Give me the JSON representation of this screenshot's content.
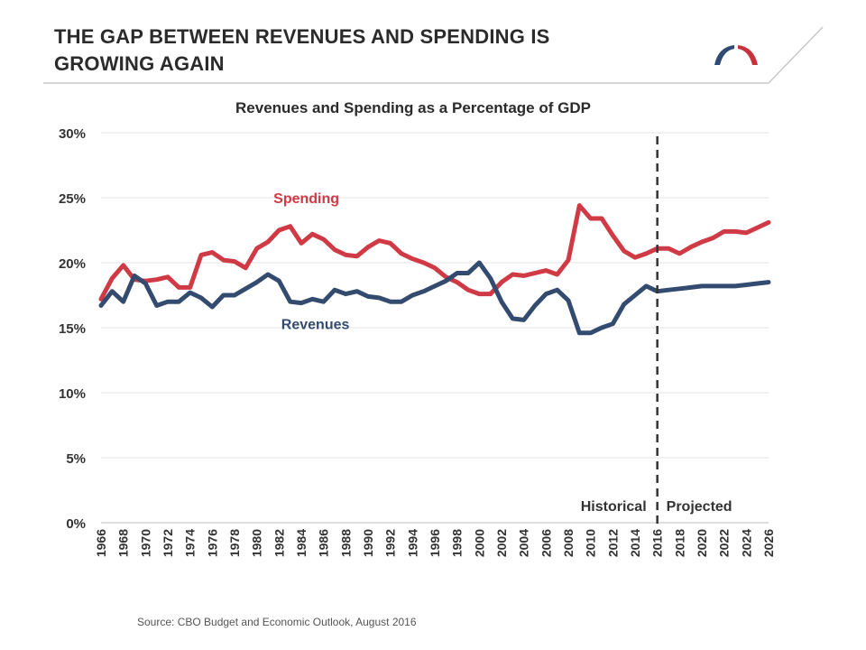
{
  "slide": {
    "title_line1": "THE GAP BETWEEN REVENUES AND SPENDING IS",
    "title_line2": "GROWING AGAIN",
    "logo_colors": [
      "#2f4a73",
      "#c8323c"
    ]
  },
  "source": "Source: CBO Budget and Economic Outlook, August 2016",
  "chart_data": {
    "type": "line",
    "title": "Revenues and Spending as a Percentage of GDP",
    "xlabel": "",
    "ylabel": "",
    "ylim": [
      0,
      30
    ],
    "yticks": [
      0,
      5,
      10,
      15,
      20,
      25,
      30
    ],
    "ytick_labels": [
      "0%",
      "5%",
      "10%",
      "15%",
      "20%",
      "25%",
      "30%"
    ],
    "x_tick_labels": [
      "1966",
      "1968",
      "1970",
      "1972",
      "1974",
      "1976",
      "1978",
      "1980",
      "1982",
      "1984",
      "1986",
      "1988",
      "1990",
      "1992",
      "1994",
      "1996",
      "1998",
      "2000",
      "2002",
      "2004",
      "2006",
      "2008",
      "2010",
      "2012",
      "2014",
      "2016",
      "2018",
      "2020",
      "2022",
      "2024",
      "2026"
    ],
    "x": [
      1966,
      1967,
      1968,
      1969,
      1970,
      1971,
      1972,
      1973,
      1974,
      1975,
      1976,
      1977,
      1978,
      1979,
      1980,
      1981,
      1982,
      1983,
      1984,
      1985,
      1986,
      1987,
      1988,
      1989,
      1990,
      1991,
      1992,
      1993,
      1994,
      1995,
      1996,
      1997,
      1998,
      1999,
      2000,
      2001,
      2002,
      2003,
      2004,
      2005,
      2006,
      2007,
      2008,
      2009,
      2010,
      2011,
      2012,
      2013,
      2014,
      2015,
      2016,
      2017,
      2018,
      2019,
      2020,
      2021,
      2022,
      2023,
      2024,
      2025,
      2026
    ],
    "grid": true,
    "legend": "inline labels",
    "series": [
      {
        "name": "Spending",
        "color": "#d03a45",
        "values": [
          17.2,
          18.8,
          19.8,
          18.7,
          18.6,
          18.7,
          18.9,
          18.1,
          18.1,
          20.6,
          20.8,
          20.2,
          20.1,
          19.6,
          21.1,
          21.6,
          22.5,
          22.8,
          21.5,
          22.2,
          21.8,
          21.0,
          20.6,
          20.5,
          21.2,
          21.7,
          21.5,
          20.7,
          20.3,
          20.0,
          19.6,
          18.9,
          18.5,
          17.9,
          17.6,
          17.6,
          18.5,
          19.1,
          19.0,
          19.2,
          19.4,
          19.1,
          20.2,
          24.4,
          23.4,
          23.4,
          22.1,
          20.9,
          20.4,
          20.7,
          21.1,
          21.1,
          20.7,
          21.2,
          21.6,
          21.9,
          22.4,
          22.4,
          22.3,
          22.7,
          23.1
        ]
      },
      {
        "name": "Revenues",
        "color": "#344b70",
        "values": [
          16.7,
          17.8,
          17.0,
          19.0,
          18.4,
          16.7,
          17.0,
          17.0,
          17.7,
          17.3,
          16.6,
          17.5,
          17.5,
          18.0,
          18.5,
          19.1,
          18.6,
          17.0,
          16.9,
          17.2,
          17.0,
          17.9,
          17.6,
          17.8,
          17.4,
          17.3,
          17.0,
          17.0,
          17.5,
          17.8,
          18.2,
          18.6,
          19.2,
          19.2,
          20.0,
          18.8,
          17.0,
          15.7,
          15.6,
          16.7,
          17.6,
          17.9,
          17.1,
          14.6,
          14.6,
          15.0,
          15.3,
          16.8,
          17.5,
          18.2,
          17.8,
          17.9,
          18.0,
          18.1,
          18.2,
          18.2,
          18.2,
          18.2,
          18.3,
          18.4,
          18.5
        ]
      }
    ],
    "annotations": {
      "divider_year": 2016,
      "left_label": "Historical",
      "right_label": "Projected"
    }
  }
}
